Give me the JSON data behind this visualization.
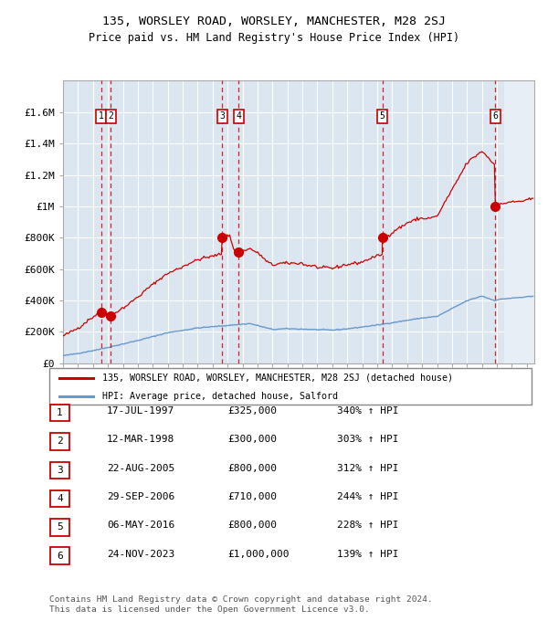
{
  "title1": "135, WORSLEY ROAD, WORSLEY, MANCHESTER, M28 2SJ",
  "title2": "Price paid vs. HM Land Registry's House Price Index (HPI)",
  "bg_color": "#dce6f1",
  "hatch_color": "#c0cfdf",
  "sale_dates_dec": [
    1997.54,
    1998.19,
    2005.64,
    2006.75,
    2016.34,
    2023.9
  ],
  "sale_prices": [
    325000,
    300000,
    800000,
    710000,
    800000,
    1000000
  ],
  "sale_labels": [
    "1",
    "2",
    "3",
    "4",
    "5",
    "6"
  ],
  "red_line_color": "#cc0000",
  "blue_line_color": "#6699cc",
  "grid_color": "#ffffff",
  "vline_color": "#cc0000",
  "legend_label_red": "135, WORSLEY ROAD, WORSLEY, MANCHESTER, M28 2SJ (detached house)",
  "legend_label_blue": "HPI: Average price, detached house, Salford",
  "table_entries": [
    {
      "num": "1",
      "date": "17-JUL-1997",
      "price": "£325,000",
      "change": "340% ↑ HPI"
    },
    {
      "num": "2",
      "date": "12-MAR-1998",
      "price": "£300,000",
      "change": "303% ↑ HPI"
    },
    {
      "num": "3",
      "date": "22-AUG-2005",
      "price": "£800,000",
      "change": "312% ↑ HPI"
    },
    {
      "num": "4",
      "date": "29-SEP-2006",
      "price": "£710,000",
      "change": "244% ↑ HPI"
    },
    {
      "num": "5",
      "date": "06-MAY-2016",
      "price": "£800,000",
      "change": "228% ↑ HPI"
    },
    {
      "num": "6",
      "date": "24-NOV-2023",
      "price": "£1,000,000",
      "change": "139% ↑ HPI"
    }
  ],
  "footer": "Contains HM Land Registry data © Crown copyright and database right 2024.\nThis data is licensed under the Open Government Licence v3.0.",
  "ylim": [
    0,
    1800000
  ],
  "ytick_vals": [
    0,
    200000,
    400000,
    600000,
    800000,
    1000000,
    1200000,
    1400000,
    1600000
  ],
  "ytick_labels": [
    "£0",
    "£200K",
    "£400K",
    "£600K",
    "£800K",
    "£1M",
    "£1.2M",
    "£1.4M",
    "£1.6M"
  ],
  "xlim_start": 1995.0,
  "xlim_end": 2026.5,
  "hatch_start": 2024.5
}
